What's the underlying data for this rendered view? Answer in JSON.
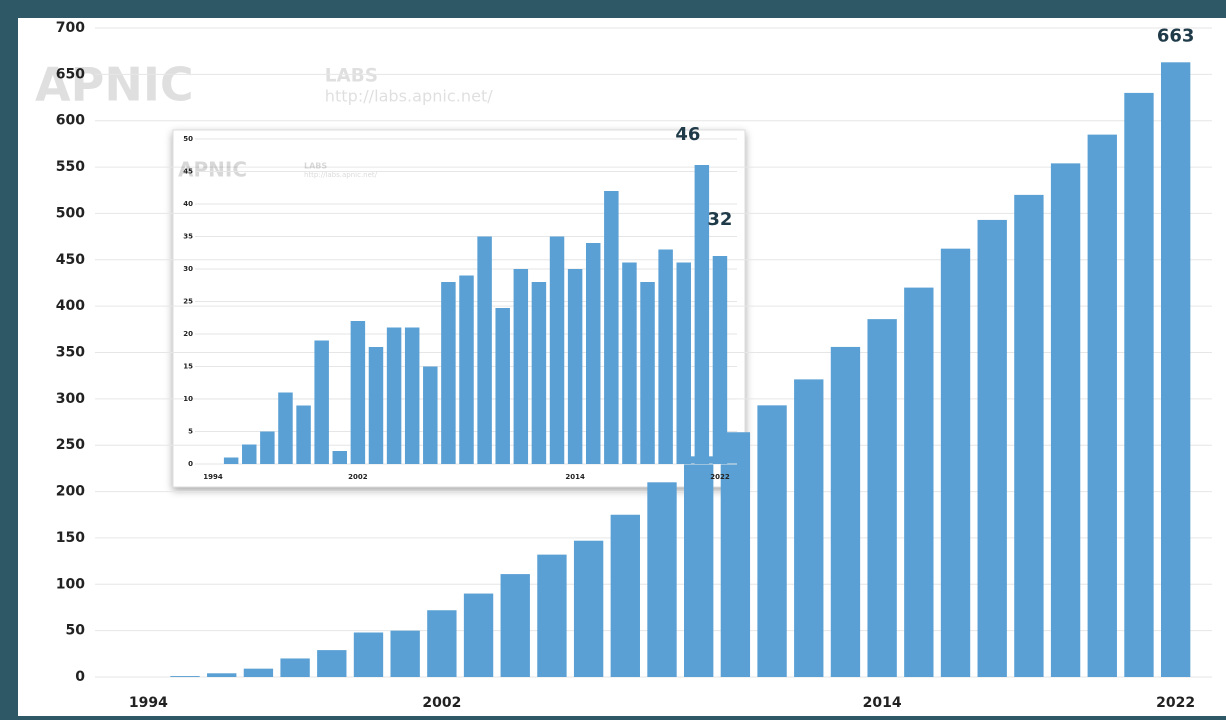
{
  "chart_data": [
    {
      "type": "bar",
      "watermark": {
        "brand": "APNIC",
        "sub": "LABS",
        "url": "http://labs.apnic.net/"
      },
      "categories": [
        "1994",
        null,
        null,
        null,
        null,
        null,
        null,
        null,
        "2002",
        null,
        null,
        null,
        null,
        null,
        null,
        null,
        null,
        null,
        null,
        null,
        "2014",
        null,
        null,
        null,
        null,
        null,
        null,
        null,
        "2022"
      ],
      "values": [
        0,
        1,
        4,
        9,
        20,
        29,
        48,
        50,
        72,
        90,
        111,
        132,
        147,
        175,
        210,
        238,
        264,
        293,
        321,
        356,
        386,
        420,
        462,
        493,
        520,
        554,
        585,
        630,
        663
      ],
      "value_labels": [
        null,
        null,
        null,
        null,
        null,
        null,
        null,
        null,
        null,
        null,
        null,
        null,
        null,
        null,
        null,
        null,
        null,
        null,
        null,
        null,
        null,
        null,
        null,
        null,
        null,
        null,
        null,
        null,
        "663"
      ],
      "color": "#5aa0d4",
      "ylim": [
        0,
        700
      ],
      "yticks": [
        0,
        50,
        100,
        150,
        200,
        250,
        300,
        350,
        400,
        450,
        500,
        550,
        600,
        650,
        700
      ],
      "grid": true
    },
    {
      "type": "bar",
      "watermark": {
        "brand": "APNIC",
        "sub": "LABS",
        "url": "http://labs.apnic.net/"
      },
      "categories": [
        "1994",
        null,
        null,
        null,
        null,
        null,
        null,
        null,
        "2002",
        null,
        null,
        null,
        null,
        null,
        null,
        null,
        null,
        null,
        null,
        null,
        "2014",
        null,
        null,
        null,
        null,
        null,
        null,
        null,
        "2022"
      ],
      "values": [
        0,
        1,
        3,
        5,
        11,
        9,
        19,
        2,
        22,
        18,
        21,
        21,
        15,
        28,
        29,
        35,
        24,
        30,
        28,
        35,
        30,
        34,
        42,
        31,
        28,
        33,
        31,
        46,
        32
      ],
      "value_labels": [
        null,
        null,
        null,
        null,
        null,
        null,
        null,
        null,
        null,
        null,
        null,
        null,
        null,
        null,
        null,
        null,
        null,
        null,
        null,
        null,
        null,
        null,
        null,
        null,
        null,
        null,
        null,
        "46",
        "32"
      ],
      "color": "#5aa0d4",
      "ylim": [
        0,
        50
      ],
      "yticks": [
        0,
        5,
        10,
        15,
        20,
        25,
        30,
        35,
        40,
        45,
        50
      ],
      "grid": true
    }
  ]
}
